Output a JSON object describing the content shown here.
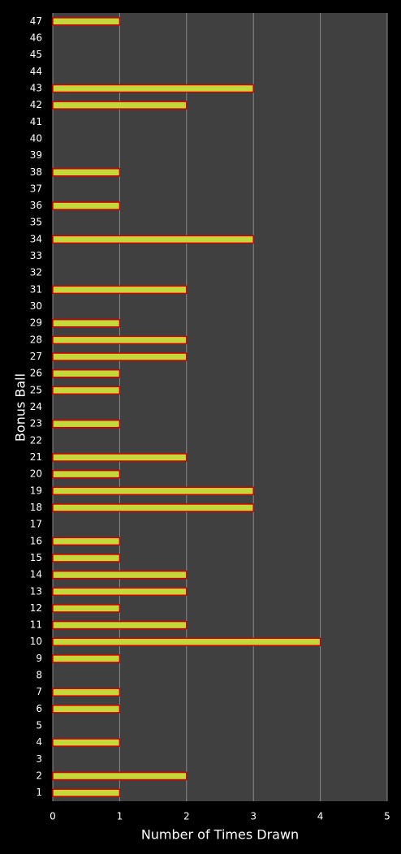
{
  "chart_data": {
    "type": "barh",
    "categories": [
      "1",
      "2",
      "3",
      "4",
      "5",
      "6",
      "7",
      "8",
      "9",
      "10",
      "11",
      "12",
      "13",
      "14",
      "15",
      "16",
      "17",
      "18",
      "19",
      "20",
      "21",
      "22",
      "23",
      "24",
      "25",
      "26",
      "27",
      "28",
      "29",
      "30",
      "31",
      "32",
      "33",
      "34",
      "35",
      "36",
      "37",
      "38",
      "39",
      "40",
      "41",
      "42",
      "43",
      "44",
      "45",
      "46",
      "47"
    ],
    "values": [
      1,
      2,
      0,
      1,
      0,
      1,
      1,
      0,
      1,
      4,
      2,
      1,
      2,
      2,
      1,
      1,
      0,
      3,
      3,
      1,
      2,
      0,
      1,
      0,
      1,
      1,
      2,
      2,
      1,
      0,
      2,
      0,
      0,
      3,
      0,
      1,
      0,
      1,
      0,
      0,
      0,
      2,
      3,
      0,
      0,
      0,
      1
    ],
    "color": "#c4d83a",
    "edge_color": "#d40000",
    "xlim": [
      0,
      5
    ],
    "xticks": [
      0,
      1,
      2,
      3,
      4,
      5
    ],
    "grid": true,
    "x_label": "Number of Times Drawn",
    "y_label": "Bonus Ball"
  }
}
